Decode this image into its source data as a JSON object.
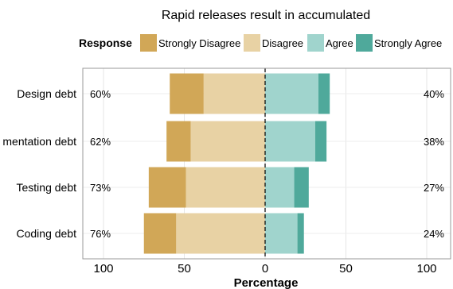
{
  "chart_data": {
    "type": "bar",
    "subtype": "diverging-stacked-likert",
    "title": "Rapid releases result in accumulated",
    "legend": {
      "title": "Response",
      "placement": "top",
      "entries": [
        {
          "label": "Strongly Disagree",
          "color": "#D1A757"
        },
        {
          "label": "Disagree",
          "color": "#E8D2A4"
        },
        {
          "label": "Agree",
          "color": "#A0D4CD"
        },
        {
          "label": "Strongly Agree",
          "color": "#4FA99B"
        }
      ]
    },
    "categories": [
      "Design debt",
      "mentation debt",
      "Testing debt",
      "Coding debt"
    ],
    "series": [
      {
        "name": "Strongly Disagree",
        "values": [
          21,
          15,
          23,
          20
        ]
      },
      {
        "name": "Disagree",
        "values": [
          38,
          46,
          49,
          55
        ]
      },
      {
        "name": "Agree",
        "values": [
          33,
          31,
          18,
          20
        ]
      },
      {
        "name": "Strongly Agree",
        "values": [
          7,
          7,
          9,
          4
        ]
      }
    ],
    "left_percent_labels": [
      "60%",
      "62%",
      "73%",
      "76%"
    ],
    "right_percent_labels": [
      "40%",
      "38%",
      "27%",
      "24%"
    ],
    "xlabel": "Percentage",
    "xlim": [
      -100,
      100
    ],
    "xticks": [
      -100,
      -50,
      0,
      50,
      100
    ],
    "xtick_labels": [
      "100",
      "50",
      "0",
      "50",
      "100"
    ],
    "grid": true
  }
}
